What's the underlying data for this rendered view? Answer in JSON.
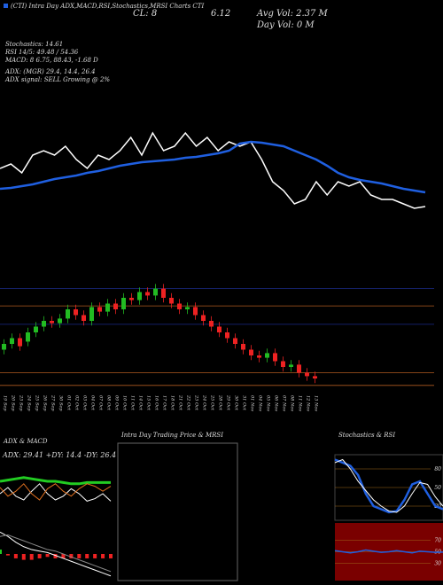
{
  "header": {
    "line1": "(CTI) Intra Day ADX,MACD,RSI,Stochastics,MRSI Charts CTI",
    "close": "CL: 8",
    "price": "6.12",
    "avg_vol": "Avg Vol: 2.37 M",
    "day_vol": "Day Vol: 0 M",
    "stoch": "Stochastics: 14.61",
    "rsi": "RSI 14/5: 49.48 / 54.36",
    "macd": "MACD: 8 6.75, 88.43, -1.68 D",
    "adx": "ADX: (MGR) 29.4, 14.4, 26.4",
    "signal": "ADX signal: SELL Growing @ 2%"
  },
  "chart_data": [
    {
      "type": "line",
      "ylim": [
        0,
        105
      ],
      "series": [
        {
          "name": "Price",
          "color": "#ffffff",
          "values": [
            55,
            60,
            50,
            70,
            75,
            70,
            80,
            65,
            55,
            70,
            65,
            75,
            90,
            70,
            95,
            75,
            80,
            95,
            80,
            90,
            75,
            85,
            80,
            85,
            65,
            40,
            30,
            15,
            20,
            40,
            25,
            40,
            35,
            40,
            25,
            20,
            20,
            15,
            10,
            12
          ]
        },
        {
          "name": "MA",
          "color": "#1f5fe0",
          "values": [
            32,
            33,
            35,
            37,
            40,
            43,
            45,
            47,
            50,
            52,
            55,
            58,
            60,
            62,
            63,
            64,
            65,
            67,
            68,
            70,
            72,
            75,
            83,
            85,
            84,
            82,
            80,
            75,
            70,
            65,
            58,
            50,
            45,
            42,
            40,
            38,
            35,
            32,
            30,
            28
          ]
        }
      ]
    },
    {
      "type": "candlestick",
      "ylim": [
        0,
        100
      ],
      "up_color": "#22bb22",
      "down_color": "#ee2222",
      "categories": [
        "19 Sep",
        "20 Sep",
        "23 Sep",
        "24 Sep",
        "25 Sep",
        "26 Sep",
        "27 Sep",
        "30 Sep",
        "01 Oct",
        "02 Oct",
        "03 Oct",
        "04 Oct",
        "07 Oct",
        "08 Oct",
        "09 Oct",
        "10 Oct",
        "11 Oct",
        "14 Oct",
        "15 Oct",
        "16 Oct",
        "17 Oct",
        "18 Oct",
        "21 Oct",
        "22 Oct",
        "23 Oct",
        "24 Oct",
        "25 Oct",
        "28 Oct",
        "29 Oct",
        "30 Oct",
        "31 Oct",
        "01 Nov",
        "04 Nov",
        "05 Nov",
        "06 Nov",
        "07 Nov",
        "08 Nov",
        "11 Nov",
        "12 Nov",
        "13 Nov"
      ],
      "open": [
        35,
        40,
        45,
        42,
        50,
        55,
        60,
        58,
        62,
        70,
        65,
        60,
        72,
        68,
        75,
        70,
        80,
        78,
        85,
        82,
        88,
        80,
        75,
        70,
        72,
        65,
        60,
        55,
        50,
        45,
        40,
        35,
        30,
        28,
        32,
        25,
        20,
        22,
        15,
        12
      ],
      "close": [
        40,
        45,
        38,
        50,
        55,
        60,
        58,
        62,
        70,
        65,
        60,
        72,
        68,
        75,
        70,
        80,
        78,
        85,
        82,
        88,
        80,
        75,
        70,
        72,
        65,
        60,
        55,
        50,
        45,
        40,
        35,
        30,
        28,
        32,
        25,
        20,
        22,
        15,
        12,
        10
      ],
      "high": [
        44,
        49,
        49,
        54,
        59,
        64,
        64,
        66,
        74,
        74,
        69,
        76,
        76,
        79,
        79,
        84,
        84,
        89,
        89,
        92,
        92,
        84,
        79,
        76,
        76,
        69,
        64,
        59,
        54,
        49,
        44,
        39,
        34,
        36,
        36,
        29,
        26,
        26,
        19,
        16
      ],
      "low": [
        31,
        36,
        34,
        38,
        46,
        51,
        54,
        54,
        58,
        61,
        56,
        56,
        64,
        64,
        66,
        66,
        74,
        74,
        78,
        78,
        76,
        71,
        66,
        66,
        61,
        56,
        51,
        46,
        41,
        36,
        31,
        26,
        24,
        24,
        21,
        16,
        16,
        11,
        8,
        6
      ],
      "levels": [
        88,
        73,
        57,
        15,
        4
      ],
      "level_colors": [
        "#1a2a88",
        "#b05a20",
        "#1a2a88",
        "#b05a20",
        "#b05a20"
      ]
    },
    {
      "type": "adx",
      "title": "ADX & MACD",
      "label": "ADX: 29.41 +DY: 14.4 -DY: 26.4",
      "ylim": [
        0,
        50
      ],
      "series": [
        {
          "name": "ADX",
          "color": "#22cc22",
          "values": [
            30,
            31,
            32,
            33,
            32,
            31,
            30,
            30,
            29,
            28,
            28,
            29,
            29,
            29,
            29
          ]
        },
        {
          "name": "+DI",
          "color": "#ffffff",
          "values": [
            20,
            25,
            18,
            15,
            22,
            28,
            20,
            15,
            18,
            24,
            20,
            14,
            16,
            20,
            14
          ]
        },
        {
          "name": "-DI",
          "color": "#e07020",
          "values": [
            25,
            18,
            22,
            28,
            20,
            15,
            24,
            28,
            22,
            18,
            24,
            28,
            26,
            22,
            26
          ]
        }
      ]
    },
    {
      "type": "macd",
      "ylim": [
        -2,
        2
      ],
      "series": [
        {
          "name": "MACD",
          "color": "#ffffff",
          "values": [
            1.5,
            1.2,
            0.8,
            0.5,
            0.3,
            0.2,
            0.1,
            -0.1,
            -0.3,
            -0.5,
            -0.7,
            -0.9,
            -1.1,
            -1.3,
            -1.5
          ]
        },
        {
          "name": "Signal",
          "color": "#888888",
          "values": [
            1.2,
            1.3,
            1.1,
            0.9,
            0.7,
            0.5,
            0.3,
            0.2,
            0.0,
            -0.2,
            -0.4,
            -0.6,
            -0.8,
            -1.0,
            -1.2
          ]
        }
      ],
      "histogram": [
        0.3,
        -0.1,
        -0.3,
        -0.4,
        -0.4,
        -0.3,
        -0.2,
        -0.3,
        -0.3,
        -0.3,
        -0.3,
        -0.3,
        -0.3,
        -0.3,
        -0.3
      ],
      "hist_up": "#22cc22",
      "hist_down": "#ee2222"
    },
    {
      "type": "intraday",
      "title": "Intra Day Trading Price & MRSI"
    },
    {
      "type": "stochastic",
      "title": "Stochastics & RSI",
      "ylim": [
        0,
        100
      ],
      "yticks": [
        20,
        50,
        80
      ],
      "series": [
        {
          "name": "%K",
          "color": "#1f5fe0",
          "values": [
            95,
            90,
            85,
            70,
            40,
            20,
            15,
            10,
            12,
            30,
            55,
            60,
            40,
            20,
            15
          ]
        },
        {
          "name": "%D",
          "color": "#ffffff",
          "values": [
            90,
            95,
            80,
            60,
            45,
            30,
            20,
            12,
            10,
            20,
            40,
            58,
            55,
            35,
            20
          ]
        }
      ]
    },
    {
      "type": "rsi",
      "ylim": [
        0,
        100
      ],
      "yticks": [
        30,
        50,
        70
      ],
      "background": "#7a0000",
      "series": [
        {
          "name": "RSI",
          "color": "#1f5fe0",
          "values": [
            52,
            50,
            48,
            50,
            53,
            51,
            49,
            50,
            52,
            50,
            48,
            51,
            50,
            49,
            49.48
          ]
        }
      ]
    }
  ]
}
